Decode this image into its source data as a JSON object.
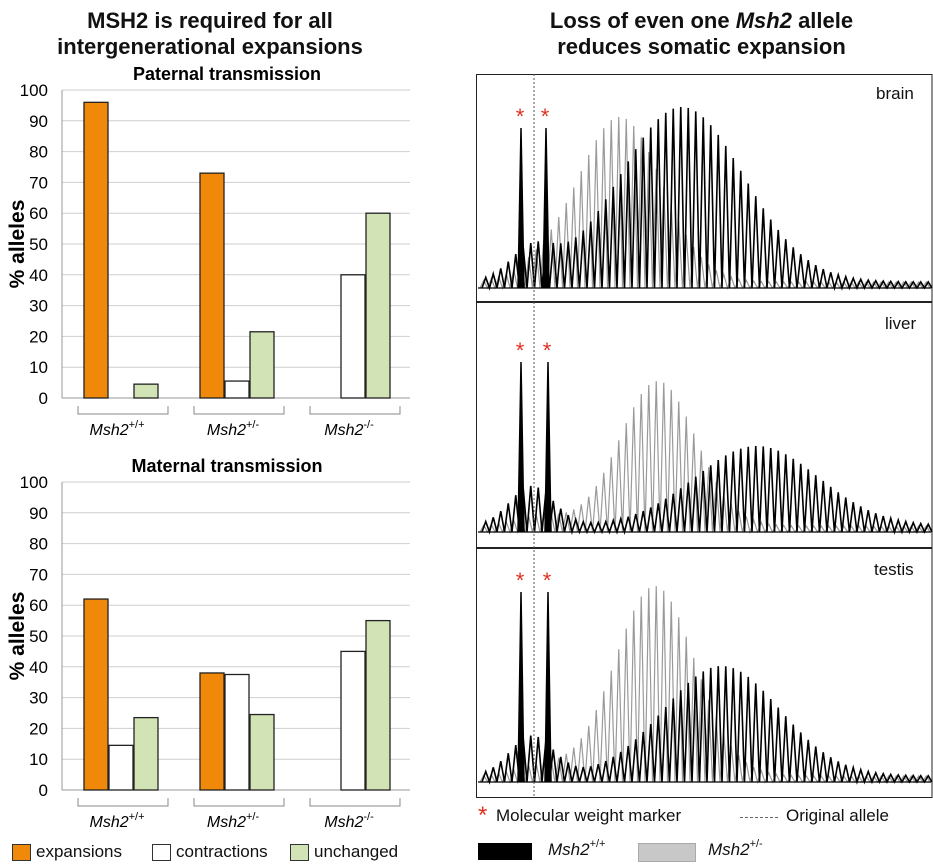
{
  "left_panel": {
    "title_line1": "MSH2 is required for all",
    "title_line2": "intergenerational expansions"
  },
  "right_panel": {
    "title_pre": "Loss of even one ",
    "title_gene": "Msh2",
    "title_post": " allele",
    "title_line2": "reduces somatic expansion",
    "tissues": [
      "brain",
      "liver",
      "testis"
    ],
    "marker_symbol": "*",
    "marker_label": "Molecular weight marker",
    "original_label": "Original allele",
    "legend": [
      {
        "gene": "Msh2",
        "sup": "+/+",
        "color": "#000000"
      },
      {
        "gene": "Msh2",
        "sup": "+/-",
        "color": "#c8c8c8"
      }
    ]
  },
  "genotypes": [
    {
      "gene": "Msh2",
      "sup": "+/+"
    },
    {
      "gene": "Msh2",
      "sup": "+/-"
    },
    {
      "gene": "Msh2",
      "sup": "-/-"
    }
  ],
  "legend": [
    {
      "label": "expansions",
      "color": "#f0880a"
    },
    {
      "label": "contractions",
      "color": "#ffffff"
    },
    {
      "label": "unchanged",
      "color": "#d2e4b6"
    }
  ],
  "colors": {
    "expansions": "#f0880a",
    "contractions": "#ffffff",
    "unchanged": "#d2e4b6",
    "marker": "#e03020"
  },
  "chart_data": [
    {
      "type": "bar",
      "title": "Paternal transmission",
      "ylabel": "% alleles",
      "ylim": [
        0,
        100
      ],
      "yticks": [
        0,
        10,
        20,
        30,
        40,
        50,
        60,
        70,
        80,
        90,
        100
      ],
      "categories": [
        "Msh2+/+",
        "Msh2+/-",
        "Msh2-/-"
      ],
      "series": [
        {
          "name": "expansions",
          "values": [
            96,
            73,
            0
          ]
        },
        {
          "name": "contractions",
          "values": [
            0,
            5.5,
            40
          ]
        },
        {
          "name": "unchanged",
          "values": [
            4.5,
            21.5,
            60
          ]
        }
      ]
    },
    {
      "type": "bar",
      "title": "Maternal transmission",
      "ylabel": "% alleles",
      "ylim": [
        0,
        100
      ],
      "yticks": [
        0,
        10,
        20,
        30,
        40,
        50,
        60,
        70,
        80,
        90,
        100
      ],
      "categories": [
        "Msh2+/+",
        "Msh2+/-",
        "Msh2-/-"
      ],
      "series": [
        {
          "name": "expansions",
          "values": [
            62,
            38,
            0
          ]
        },
        {
          "name": "contractions",
          "values": [
            14.5,
            37.5,
            45
          ]
        },
        {
          "name": "unchanged",
          "values": [
            23.5,
            24.5,
            55
          ]
        }
      ]
    }
  ]
}
